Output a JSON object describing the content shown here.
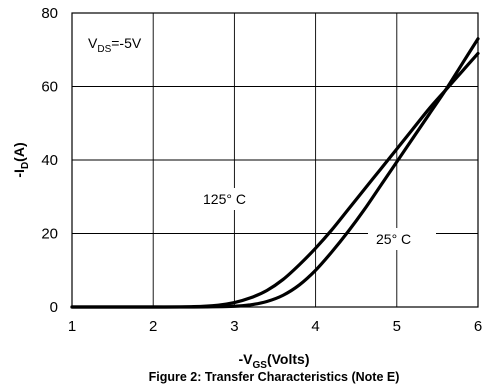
{
  "chart_data": {
    "type": "line",
    "caption": "Figure 2: Transfer Characteristics (Note E)",
    "xlabel": {
      "prefix": "-V",
      "sub": "GS",
      "suffix": "(Volts)"
    },
    "ylabel": {
      "prefix": "-I",
      "sub": "D",
      "suffix": "(A)"
    },
    "xlim": [
      1,
      6
    ],
    "ylim": [
      0,
      80
    ],
    "xticks": [
      "1",
      "2",
      "3",
      "4",
      "5",
      "6"
    ],
    "yticks": [
      "0",
      "20",
      "40",
      "60",
      "80"
    ],
    "grid": true,
    "condition": {
      "prefix": "V",
      "sub": "DS",
      "suffix": "=-5V"
    },
    "series": [
      {
        "name": "125° C",
        "x": [
          1.0,
          2.0,
          2.5,
          2.8,
          3.0,
          3.2,
          3.4,
          3.6,
          3.8,
          4.0,
          4.2,
          4.4,
          4.6,
          4.8,
          5.0,
          5.2,
          5.4,
          5.6,
          5.8,
          6.0
        ],
        "values": [
          0,
          0,
          0.1,
          0.5,
          1.2,
          2.5,
          4.5,
          7.5,
          11.5,
          16,
          21,
          26.5,
          32,
          37.5,
          43,
          48.5,
          54,
          59,
          64,
          69
        ]
      },
      {
        "name": "25° C",
        "x": [
          1.0,
          2.0,
          2.5,
          3.0,
          3.2,
          3.4,
          3.6,
          3.8,
          4.0,
          4.2,
          4.4,
          4.6,
          4.8,
          5.0,
          5.2,
          5.4,
          5.6,
          5.8,
          6.0
        ],
        "values": [
          0,
          0,
          0,
          0.2,
          0.6,
          1.5,
          3.2,
          6,
          10,
          15,
          20.5,
          26.5,
          33,
          39.5,
          46,
          52.5,
          59,
          66,
          73
        ]
      }
    ]
  }
}
